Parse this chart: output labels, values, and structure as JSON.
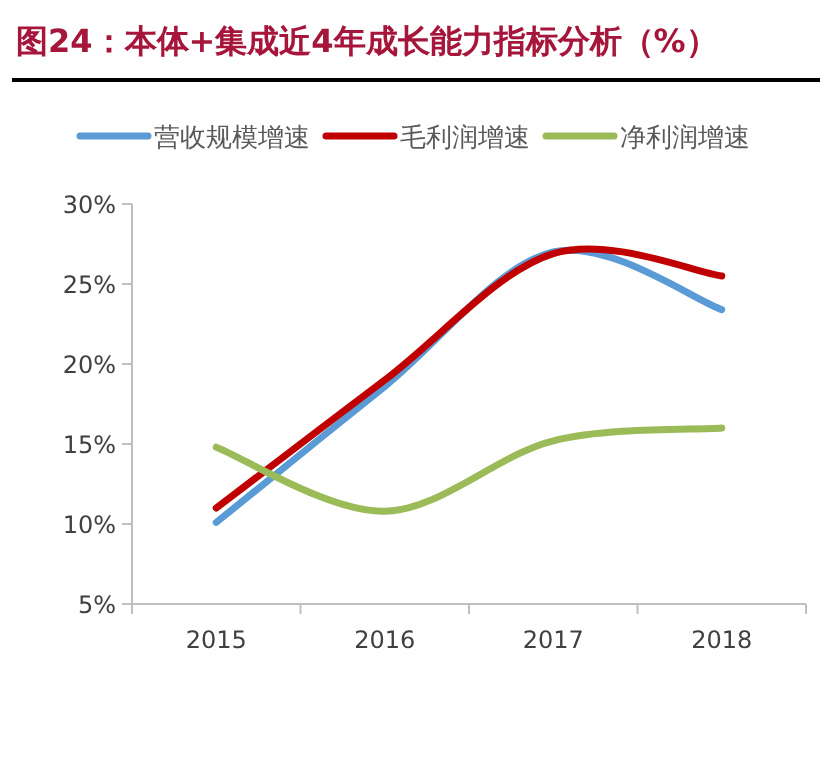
{
  "chart_data": {
    "type": "line",
    "title": "图24：本体+集成近4年成长能力指标分析（%）",
    "categories": [
      "2015",
      "2016",
      "2017",
      "2018"
    ],
    "series": [
      {
        "name": "营收规模增速",
        "color": "#5b9bd5",
        "values": [
          10.1,
          18.6,
          27.0,
          23.4
        ]
      },
      {
        "name": "毛利润增速",
        "color": "#c00000",
        "values": [
          11.0,
          19.0,
          26.9,
          25.5
        ]
      },
      {
        "name": "净利润增速",
        "color": "#9bbb59",
        "values": [
          14.8,
          10.8,
          15.2,
          16.0
        ]
      }
    ],
    "ylim": [
      5,
      30
    ],
    "yticks": [
      {
        "value": 5,
        "label": "5%"
      },
      {
        "value": 10,
        "label": "10%"
      },
      {
        "value": 15,
        "label": "15%"
      },
      {
        "value": 20,
        "label": "20%"
      },
      {
        "value": 25,
        "label": "25%"
      },
      {
        "value": 30,
        "label": "30%"
      }
    ],
    "legend": "top",
    "grid": false
  }
}
